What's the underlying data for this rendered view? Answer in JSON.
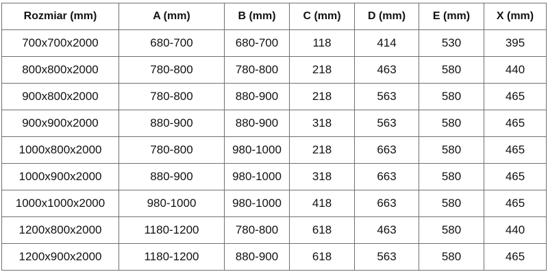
{
  "table": {
    "headers": [
      "Rozmiar (mm)",
      "A (mm)",
      "B (mm)",
      "C (mm)",
      "D (mm)",
      "E (mm)",
      "X (mm)"
    ],
    "rows": [
      [
        "700x700x2000",
        "680-700",
        "680-700",
        "118",
        "414",
        "530",
        "395"
      ],
      [
        "800x800x2000",
        "780-800",
        "780-800",
        "218",
        "463",
        "580",
        "440"
      ],
      [
        "900x800x2000",
        "780-800",
        "880-900",
        "218",
        "563",
        "580",
        "465"
      ],
      [
        "900x900x2000",
        "880-900",
        "880-900",
        "318",
        "563",
        "580",
        "465"
      ],
      [
        "1000x800x2000",
        "780-800",
        "980-1000",
        "218",
        "663",
        "580",
        "465"
      ],
      [
        "1000x900x2000",
        "880-900",
        "980-1000",
        "318",
        "663",
        "580",
        "465"
      ],
      [
        "1000x1000x2000",
        "980-1000",
        "980-1000",
        "418",
        "663",
        "580",
        "465"
      ],
      [
        "1200x800x2000",
        "1180-1200",
        "780-800",
        "618",
        "463",
        "580",
        "440"
      ],
      [
        "1200x900x2000",
        "1180-1200",
        "880-900",
        "618",
        "563",
        "580",
        "465"
      ]
    ]
  }
}
